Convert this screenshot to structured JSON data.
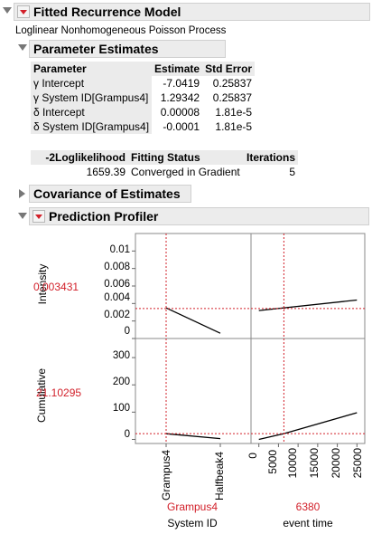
{
  "report": {
    "title": "Fitted Recurrence Model",
    "subtitle": "Loglinear Nonhomogeneous Poisson Process"
  },
  "param_estimates": {
    "title": "Parameter Estimates",
    "columns": [
      "Parameter",
      "Estimate",
      "Std Error"
    ],
    "rows": [
      [
        "γ Intercept",
        "-7.0419",
        "0.25837"
      ],
      [
        "γ System ID[Grampus4]",
        "1.29342",
        "0.25837"
      ],
      [
        "δ Intercept",
        "0.00008",
        "1.81e-5"
      ],
      [
        "δ System ID[Grampus4]",
        "-0.0001",
        "1.81e-5"
      ]
    ]
  },
  "fit_stats": {
    "columns": [
      "-2Loglikelihood",
      "Fitting Status",
      "Iterations"
    ],
    "values": [
      "1659.39",
      "Converged in Gradient",
      "5"
    ]
  },
  "covariance": {
    "title": "Covariance of Estimates"
  },
  "profiler": {
    "title": "Prediction Profiler",
    "rows": [
      {
        "label": "Intensity",
        "value": "0.003431",
        "ticks": [
          "0.01",
          "0.008",
          "0.006",
          "0.004",
          "0.002",
          "0"
        ]
      },
      {
        "label": "Cumulative",
        "value": "21.10295",
        "ticks": [
          "300",
          "200",
          "100",
          "0"
        ]
      }
    ],
    "factors": [
      {
        "name": "System ID",
        "current": "Grampus4",
        "ticks": [
          "Grampus4",
          "Halfbeak4"
        ]
      },
      {
        "name": "event time",
        "current": "6380",
        "ticks": [
          "0",
          "5000",
          "10000",
          "15000",
          "20000",
          "25000"
        ]
      }
    ],
    "colors": {
      "line": "#000000",
      "crosshair": "#d2202a",
      "value_text": "#d2202a"
    }
  },
  "chart_data": {
    "type": "line",
    "profiles": [
      {
        "response": "Intensity",
        "factor": "System ID",
        "x": [
          "Grampus4",
          "Halfbeak4"
        ],
        "y": [
          0.0035,
          0.0006
        ],
        "ylim": [
          0,
          0.012
        ]
      },
      {
        "response": "Intensity",
        "factor": "event time",
        "x": [
          0,
          25000
        ],
        "y": [
          0.0032,
          0.0044
        ],
        "xlim": [
          -2000,
          27000
        ],
        "ylim": [
          0,
          0.012
        ]
      },
      {
        "response": "Cumulative",
        "factor": "System ID",
        "x": [
          "Grampus4",
          "Halfbeak4"
        ],
        "y": [
          21,
          3
        ],
        "ylim": [
          -15,
          370
        ]
      },
      {
        "response": "Cumulative",
        "factor": "event time",
        "x": [
          0,
          6380,
          25000
        ],
        "y": [
          0,
          21.1,
          98
        ],
        "xlim": [
          -2000,
          27000
        ],
        "ylim": [
          -15,
          370
        ]
      }
    ],
    "current": {
      "System ID": "Grampus4",
      "event time": 6380,
      "Intensity": 0.003431,
      "Cumulative": 21.10295
    }
  }
}
